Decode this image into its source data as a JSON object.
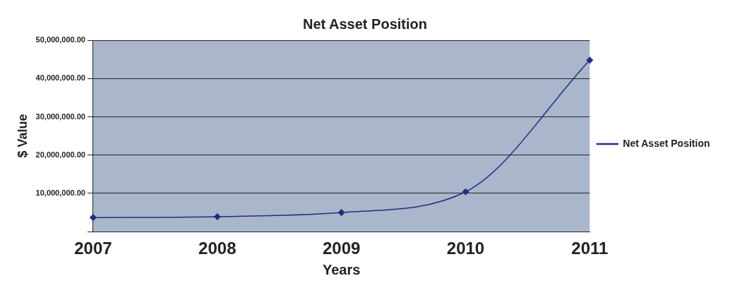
{
  "chart_data": {
    "type": "line",
    "title": "Net Asset Position",
    "xlabel": "Years",
    "ylabel": "$ Value",
    "categories": [
      "2007",
      "2008",
      "2009",
      "2010",
      "2011"
    ],
    "series": [
      {
        "name": "Net Asset Position",
        "color": "#1f2f7f",
        "values": [
          3700000,
          3900000,
          5000000,
          10400000,
          44800000
        ]
      }
    ],
    "ylim": [
      0,
      50000000
    ],
    "yticks": [
      {
        "value": 0,
        "label": null
      },
      {
        "value": 10000000,
        "label": "10,000,000.00"
      },
      {
        "value": 20000000,
        "label": "20,000,000.00"
      },
      {
        "value": 30000000,
        "label": "30,000,000.00"
      },
      {
        "value": 40000000,
        "label": "40,000,000.00"
      },
      {
        "value": 50000000,
        "label": "50,000,000.00"
      }
    ],
    "grid": "y",
    "legend": "right",
    "marker": "diamond",
    "line_style": "solid"
  }
}
